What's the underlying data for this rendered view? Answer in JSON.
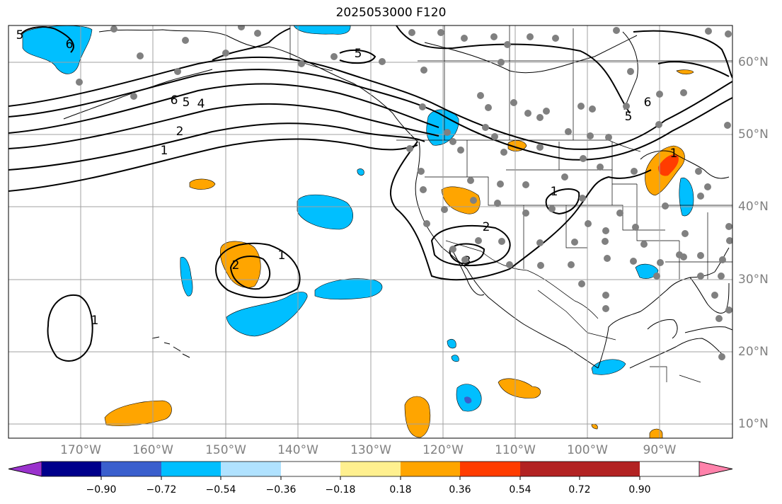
{
  "title": "2025053000 F120",
  "colors": {
    "grid": "#a0a0a0",
    "coast": "#000000",
    "contour": "#000000",
    "station": "#808080"
  },
  "lon_labels": [
    "170°W",
    "160°W",
    "150°W",
    "140°W",
    "130°W",
    "120°W",
    "110°W",
    "100°W",
    "90°W"
  ],
  "lat_labels": [
    "60°N",
    "50°N",
    "40°N",
    "30°N",
    "20°N",
    "10°N"
  ],
  "colorbar": {
    "colors": [
      "#9a32cd",
      "#00008b",
      "#3a5fcd",
      "#00bfff",
      "#b0e2ff",
      "#ffffff",
      "#fff08f",
      "#ffa500",
      "#ff3c00",
      "#b22222",
      "#ff82ab"
    ],
    "ticks": [
      "−0.90",
      "−0.72",
      "−0.54",
      "−0.36",
      "−0.18",
      "0.18",
      "0.36",
      "0.54",
      "0.72",
      "0.90"
    ]
  },
  "contour_labels": {
    "c6a": "6",
    "c5a": "5",
    "c4a": "4",
    "c2a": "2",
    "c1a": "1",
    "c5b": "5",
    "c6b": "6",
    "c5c": "5",
    "c1b": "1",
    "c2b": "2",
    "c3a": "3",
    "c1c": "1",
    "c2c": "2",
    "c1d": "1",
    "c6c": "6",
    "c1e": "1"
  }
}
